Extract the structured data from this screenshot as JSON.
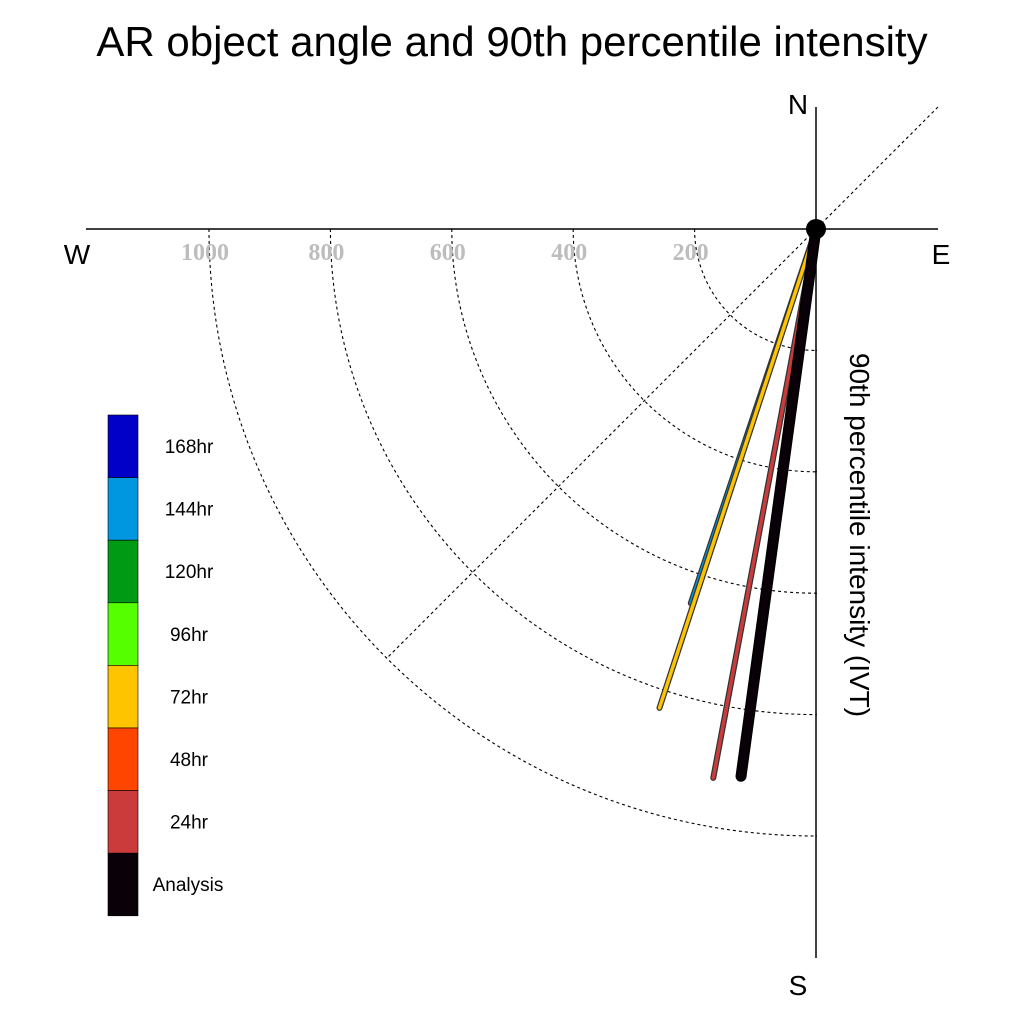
{
  "chart_data": {
    "type": "polar-vector",
    "title": "AR object angle and 90th percentile intensity",
    "ylabel": "90th percentile intensity (IVT)",
    "compass": {
      "north": "N",
      "south": "S",
      "east": "E",
      "west": "W"
    },
    "radial_ticks": [
      "200",
      "400",
      "600",
      "800",
      "1000"
    ],
    "radial_tick_values": [
      200,
      400,
      600,
      800,
      1000
    ],
    "rlim": [
      0,
      1000
    ],
    "legend_placement": "left",
    "legend": [
      {
        "label": "168hr",
        "color": "#0000c8"
      },
      {
        "label": "144hr",
        "color": "#0096e0"
      },
      {
        "label": "120hr",
        "color": "#009a14"
      },
      {
        "label": "96hr",
        "color": "#55ff00"
      },
      {
        "label": "72hr",
        "color": "#ffc400"
      },
      {
        "label": "48hr",
        "color": "#ff4500"
      },
      {
        "label": "24hr",
        "color": "#cc3b3b"
      },
      {
        "label": "Analysis",
        "color": "#0a0008"
      }
    ],
    "series": [
      {
        "name": "144hr",
        "angle_deg": 198.5,
        "intensity": 650,
        "color": "#0096e0"
      },
      {
        "name": "72hr",
        "angle_deg": 198.1,
        "intensity": 830,
        "color": "#ffc400"
      },
      {
        "name": "24hr",
        "angle_deg": 190.6,
        "intensity": 920,
        "color": "#cc3b3b"
      },
      {
        "name": "Analysis",
        "angle_deg": 187.8,
        "intensity": 910,
        "color": "#0a0008"
      }
    ]
  }
}
